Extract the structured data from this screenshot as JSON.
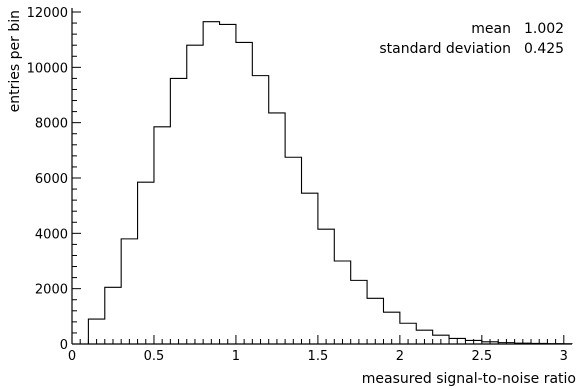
{
  "chart_data": {
    "type": "histogram",
    "xlabel": "measured signal-to-noise ratio",
    "ylabel": "entries per bin",
    "xlim": [
      0,
      3.05
    ],
    "ylim": [
      0,
      12000
    ],
    "x_ticks": [
      "0",
      "0.5",
      "1",
      "1.5",
      "2",
      "2.5",
      "3"
    ],
    "y_ticks": [
      "0",
      "2000",
      "4000",
      "6000",
      "8000",
      "10000",
      "12000"
    ],
    "bin_width": 0.1,
    "bins": [
      {
        "x0": 0.0,
        "value": 0
      },
      {
        "x0": 0.1,
        "value": 900
      },
      {
        "x0": 0.2,
        "value": 2050
      },
      {
        "x0": 0.3,
        "value": 3800
      },
      {
        "x0": 0.4,
        "value": 5850
      },
      {
        "x0": 0.5,
        "value": 7850
      },
      {
        "x0": 0.6,
        "value": 9600
      },
      {
        "x0": 0.7,
        "value": 10800
      },
      {
        "x0": 0.8,
        "value": 11650
      },
      {
        "x0": 0.9,
        "value": 11550
      },
      {
        "x0": 1.0,
        "value": 10900
      },
      {
        "x0": 1.1,
        "value": 9700
      },
      {
        "x0": 1.2,
        "value": 8350
      },
      {
        "x0": 1.3,
        "value": 6750
      },
      {
        "x0": 1.4,
        "value": 5450
      },
      {
        "x0": 1.5,
        "value": 4150
      },
      {
        "x0": 1.6,
        "value": 3000
      },
      {
        "x0": 1.7,
        "value": 2300
      },
      {
        "x0": 1.8,
        "value": 1650
      },
      {
        "x0": 1.9,
        "value": 1150
      },
      {
        "x0": 2.0,
        "value": 750
      },
      {
        "x0": 2.1,
        "value": 500
      },
      {
        "x0": 2.2,
        "value": 320
      },
      {
        "x0": 2.3,
        "value": 200
      },
      {
        "x0": 2.4,
        "value": 130
      },
      {
        "x0": 2.5,
        "value": 80
      },
      {
        "x0": 2.6,
        "value": 50
      },
      {
        "x0": 2.7,
        "value": 30
      },
      {
        "x0": 2.8,
        "value": 20
      },
      {
        "x0": 2.9,
        "value": 10
      },
      {
        "x0": 3.0,
        "value": 5
      }
    ],
    "stats": [
      {
        "label": "mean",
        "value": "1.002"
      },
      {
        "label": "standard deviation",
        "value": "0.425"
      }
    ]
  }
}
